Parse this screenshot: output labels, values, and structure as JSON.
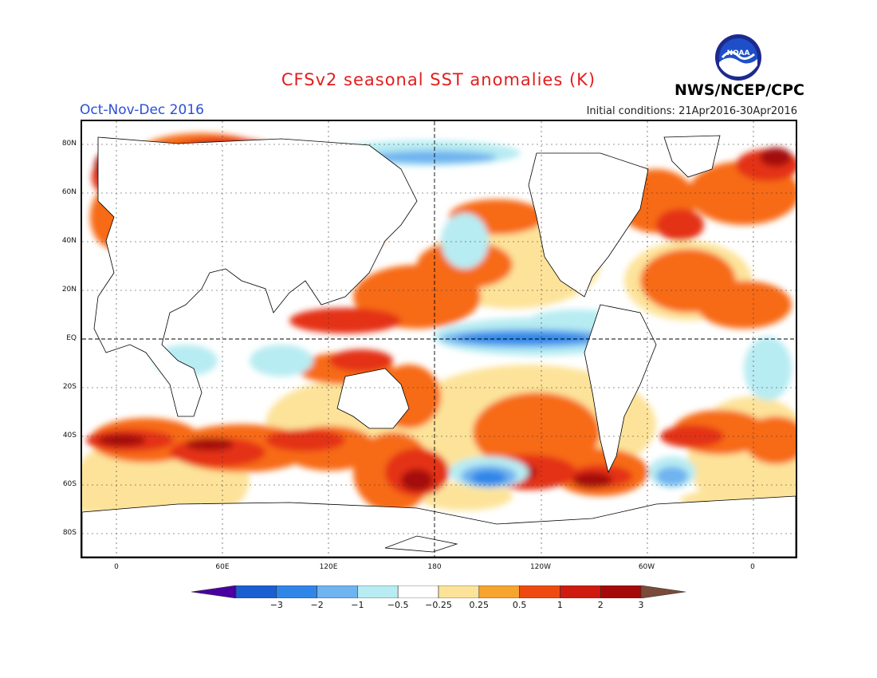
{
  "header": {
    "title": "CFSv2 seasonal SST anomalies (K)",
    "period": "Oct-Nov-Dec 2016",
    "initial_conditions": "Initial conditions: 21Apr2016-30Apr2016",
    "agency": "NWS/NCEP/CPC",
    "logo_text": "NOAA"
  },
  "map": {
    "lat_labels": [
      "80N",
      "60N",
      "40N",
      "20N",
      "EQ",
      "20S",
      "40S",
      "60S",
      "80S"
    ],
    "lon_labels": [
      "0",
      "60E",
      "120E",
      "180",
      "120W",
      "60W",
      "0"
    ]
  },
  "colorbar": {
    "ticks": [
      "−3",
      "−2",
      "−1",
      "−0.5",
      "−0.25",
      "0.25",
      "0.5",
      "1",
      "2",
      "3"
    ],
    "colors": [
      "#4a00a0",
      "#1a5fd0",
      "#2f86e8",
      "#6fb3f0",
      "#b7ecf2",
      "#ffffff",
      "#fde39a",
      "#f7a530",
      "#ee4a10",
      "#cf1a10",
      "#a50a0a",
      "#7a4a3a"
    ]
  },
  "anomaly_colors": {
    "strong_warm": "#a50a0a",
    "warm": "#e43012",
    "moderate_warm": "#f76a12",
    "weak_warm": "#fde39a",
    "weak_cool": "#b7ecf2",
    "cool": "#6fb3f0",
    "moderate_cool": "#2f86e8"
  }
}
